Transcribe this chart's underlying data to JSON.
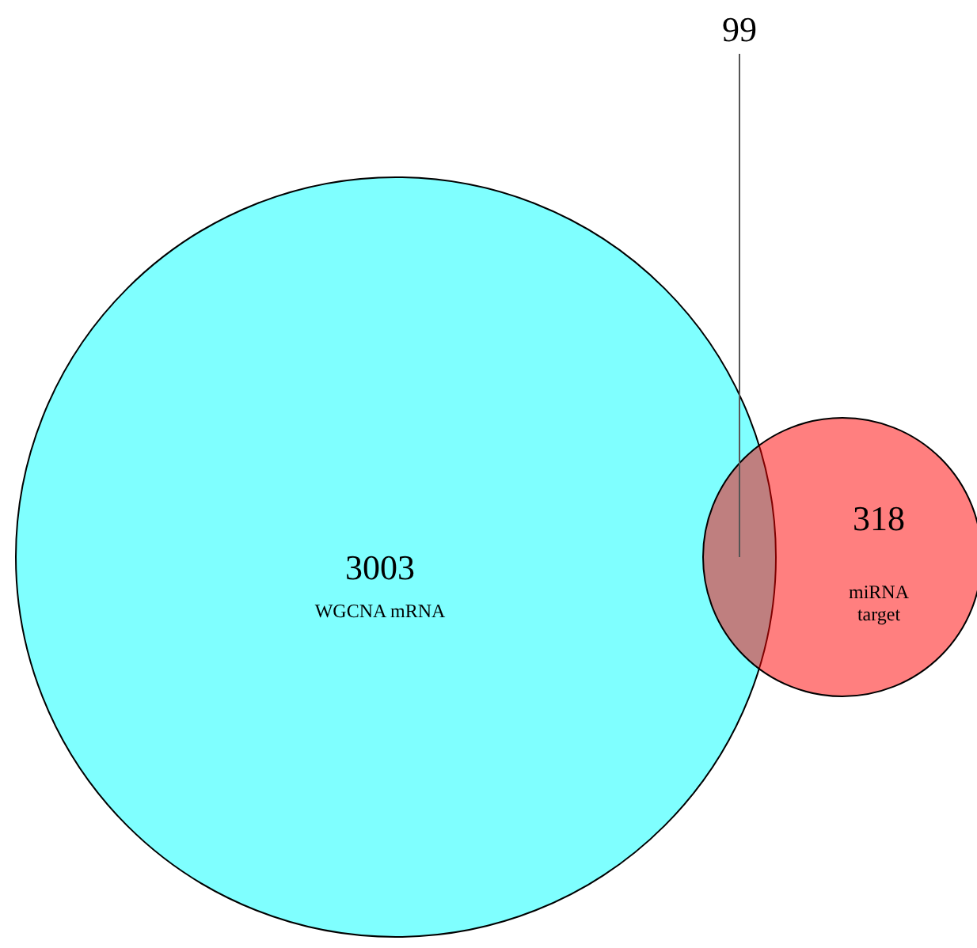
{
  "chart_data": {
    "type": "other",
    "categories": [
      "WGCNA mRNA",
      "miRNA target"
    ],
    "values": [
      3003,
      318
    ],
    "colors": [
      "#00ffff",
      "#ff0000"
    ],
    "annotations": [
      "99"
    ],
    "data_labels": true
  }
}
